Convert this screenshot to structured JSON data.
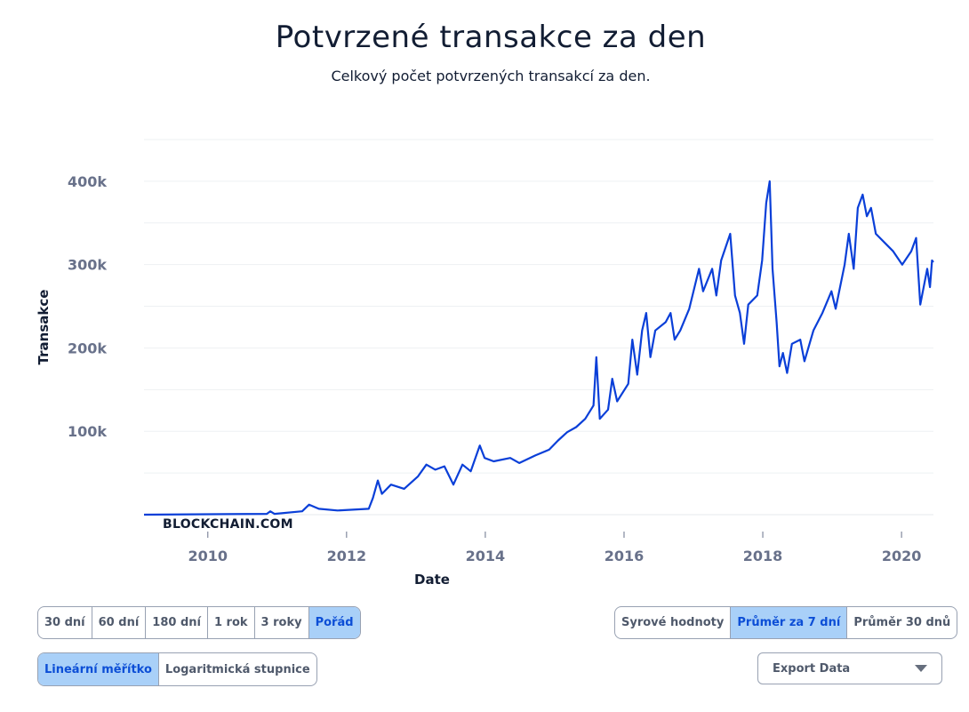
{
  "header": {
    "title": "Potvrzené transakce za den",
    "subtitle": "Celkový počet potvrzených transakcí za den."
  },
  "watermark": "BLOCKCHAIN.COM",
  "range_buttons": [
    {
      "label": "30 dní",
      "active": false
    },
    {
      "label": "60 dní",
      "active": false
    },
    {
      "label": "180 dní",
      "active": false
    },
    {
      "label": "1 rok",
      "active": false
    },
    {
      "label": "3 roky",
      "active": false
    },
    {
      "label": "Pořád",
      "active": true
    }
  ],
  "scale_buttons": [
    {
      "label": "Lineární měřítko",
      "active": true
    },
    {
      "label": "Logaritmická stupnice",
      "active": false
    }
  ],
  "avg_buttons": [
    {
      "label": "Syrové hodnoty",
      "active": false
    },
    {
      "label": "Průměr za 7 dní",
      "active": true
    },
    {
      "label": "Průměr 30 dnů",
      "active": false
    }
  ],
  "export": {
    "label": "Export Data"
  },
  "chart_data": {
    "type": "line",
    "title": "Potvrzené transakce za den",
    "xlabel": "Date",
    "ylabel": "Transakce",
    "xlim": [
      2009.08,
      2020.46
    ],
    "ylim": [
      0,
      450000
    ],
    "xticks": [
      2010,
      2012,
      2014,
      2016,
      2018,
      2020
    ],
    "xtick_labels": [
      "2010",
      "2012",
      "2014",
      "2016",
      "2018",
      "2020"
    ],
    "yticks": [
      100000,
      200000,
      300000,
      400000
    ],
    "ytick_labels": [
      "100k",
      "200k",
      "300k",
      "400k"
    ],
    "grid": true,
    "line_color": "#0a3fd8",
    "series": [
      {
        "name": "Transakce",
        "points": [
          [
            2009.08,
            0
          ],
          [
            2010.85,
            1000
          ],
          [
            2010.9,
            4000
          ],
          [
            2010.96,
            1000
          ],
          [
            2011.36,
            4000
          ],
          [
            2011.46,
            12000
          ],
          [
            2011.6,
            7000
          ],
          [
            2011.87,
            5000
          ],
          [
            2012.32,
            7000
          ],
          [
            2012.38,
            20000
          ],
          [
            2012.45,
            41000
          ],
          [
            2012.51,
            25000
          ],
          [
            2012.64,
            36000
          ],
          [
            2012.83,
            31000
          ],
          [
            2013.03,
            46000
          ],
          [
            2013.15,
            60000
          ],
          [
            2013.28,
            54000
          ],
          [
            2013.41,
            58000
          ],
          [
            2013.54,
            36000
          ],
          [
            2013.67,
            60000
          ],
          [
            2013.79,
            52000
          ],
          [
            2013.92,
            83000
          ],
          [
            2013.99,
            68000
          ],
          [
            2014.12,
            64000
          ],
          [
            2014.36,
            68000
          ],
          [
            2014.49,
            62000
          ],
          [
            2014.72,
            71000
          ],
          [
            2014.92,
            78000
          ],
          [
            2015.05,
            89000
          ],
          [
            2015.18,
            99000
          ],
          [
            2015.31,
            105000
          ],
          [
            2015.44,
            115000
          ],
          [
            2015.56,
            131000
          ],
          [
            2015.6,
            189000
          ],
          [
            2015.65,
            115000
          ],
          [
            2015.77,
            126000
          ],
          [
            2015.83,
            163000
          ],
          [
            2015.9,
            136000
          ],
          [
            2016.06,
            157000
          ],
          [
            2016.12,
            210000
          ],
          [
            2016.19,
            168000
          ],
          [
            2016.26,
            221000
          ],
          [
            2016.32,
            242000
          ],
          [
            2016.38,
            189000
          ],
          [
            2016.45,
            221000
          ],
          [
            2016.6,
            231000
          ],
          [
            2016.67,
            242000
          ],
          [
            2016.73,
            210000
          ],
          [
            2016.81,
            221000
          ],
          [
            2016.94,
            247000
          ],
          [
            2017.08,
            295000
          ],
          [
            2017.14,
            268000
          ],
          [
            2017.27,
            295000
          ],
          [
            2017.33,
            263000
          ],
          [
            2017.4,
            305000
          ],
          [
            2017.53,
            337000
          ],
          [
            2017.6,
            263000
          ],
          [
            2017.67,
            242000
          ],
          [
            2017.73,
            205000
          ],
          [
            2017.79,
            252000
          ],
          [
            2017.92,
            263000
          ],
          [
            2017.99,
            305000
          ],
          [
            2018.05,
            374000
          ],
          [
            2018.1,
            400000
          ],
          [
            2018.14,
            295000
          ],
          [
            2018.2,
            231000
          ],
          [
            2018.24,
            178000
          ],
          [
            2018.29,
            194000
          ],
          [
            2018.35,
            170000
          ],
          [
            2018.42,
            205000
          ],
          [
            2018.54,
            210000
          ],
          [
            2018.6,
            184000
          ],
          [
            2018.73,
            221000
          ],
          [
            2018.86,
            242000
          ],
          [
            2018.99,
            268000
          ],
          [
            2019.05,
            247000
          ],
          [
            2019.18,
            300000
          ],
          [
            2019.24,
            337000
          ],
          [
            2019.31,
            295000
          ],
          [
            2019.37,
            368000
          ],
          [
            2019.44,
            384000
          ],
          [
            2019.5,
            358000
          ],
          [
            2019.56,
            368000
          ],
          [
            2019.63,
            337000
          ],
          [
            2019.76,
            326000
          ],
          [
            2019.88,
            316000
          ],
          [
            2020.01,
            300000
          ],
          [
            2020.14,
            316000
          ],
          [
            2020.21,
            332000
          ],
          [
            2020.27,
            252000
          ],
          [
            2020.37,
            295000
          ],
          [
            2020.41,
            273000
          ],
          [
            2020.44,
            305000
          ],
          [
            2020.46,
            303000
          ]
        ]
      }
    ]
  }
}
